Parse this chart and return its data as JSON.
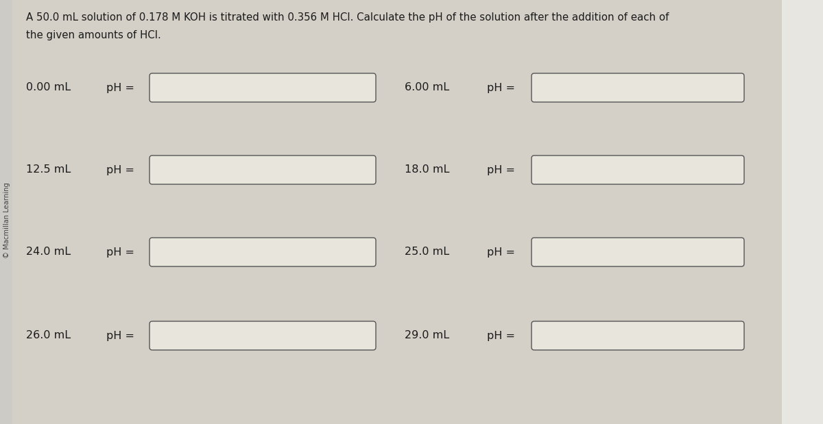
{
  "title_line1": "A 50.0 mL solution of 0.178 M KOH is titrated with 0.356 M HCl. Calculate the pH of the solution after the addition of each of",
  "title_line2": "the given amounts of HCl.",
  "watermark": "© Macmillan Learning",
  "background_color": "#cccbc6",
  "main_panel_color": "#d4d0c8",
  "right_panel_color": "#e0ddd6",
  "box_fill": "#e8e5dd",
  "box_edge": "#555555",
  "text_color": "#1a1a1a",
  "title_fontsize": 10.8,
  "item_fontsize": 11.5,
  "watermark_fontsize": 7.2,
  "left_items": [
    {
      "volume": "0.00 mL"
    },
    {
      "volume": "12.5 mL"
    },
    {
      "volume": "24.0 mL"
    },
    {
      "volume": "26.0 mL"
    }
  ],
  "right_items": [
    {
      "volume": "6.00 mL"
    },
    {
      "volume": "18.0 mL"
    },
    {
      "volume": "25.0 mL"
    },
    {
      "volume": "29.0 mL"
    }
  ],
  "fig_width": 12.0,
  "fig_height": 6.19,
  "dpi": 100
}
